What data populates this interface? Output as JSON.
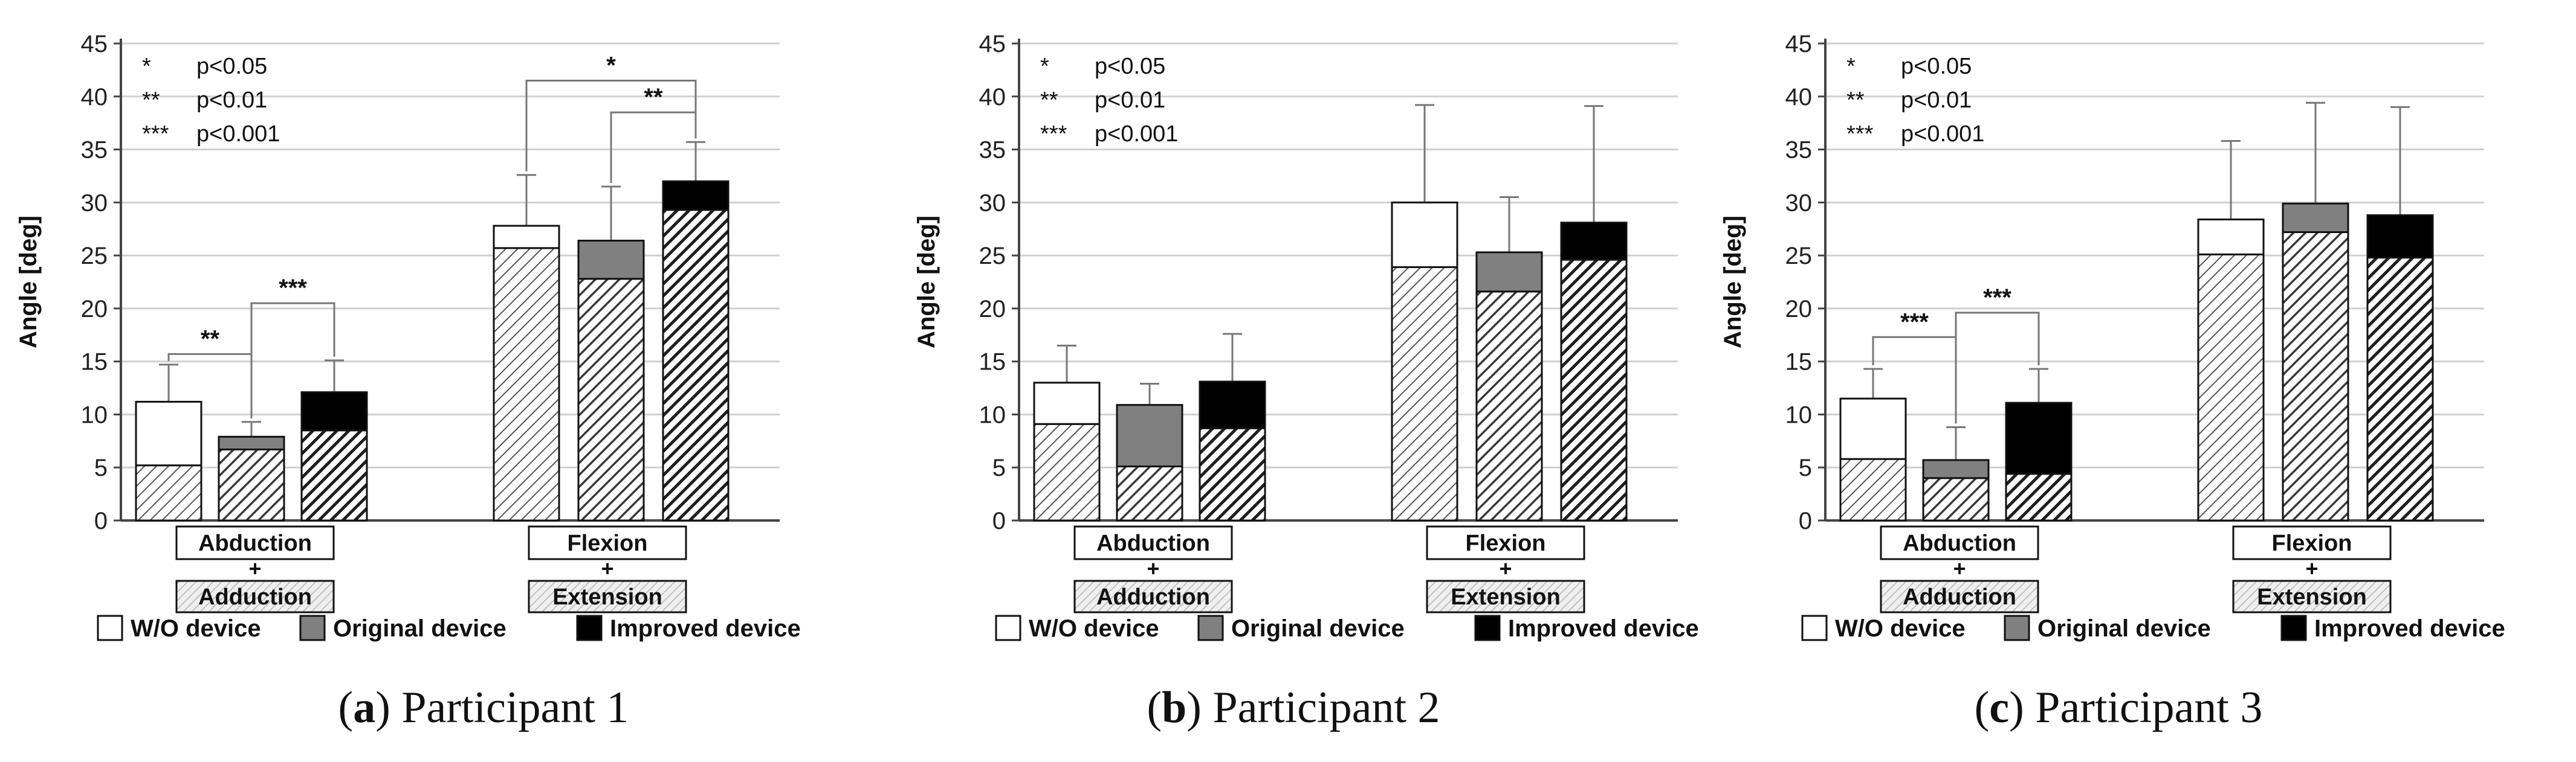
{
  "legend": {
    "items": [
      {
        "label": "W/O device",
        "swatch_color": "#ffffff"
      },
      {
        "label": "Original device",
        "swatch_color": "#808080"
      },
      {
        "label": "Improved device",
        "swatch_color": "#000000"
      }
    ]
  },
  "significance_key": [
    {
      "symbol": "*",
      "text": "p<0.05"
    },
    {
      "symbol": "**",
      "text": "p<0.01"
    },
    {
      "symbol": "***",
      "text": "p<0.001"
    }
  ],
  "group_labels": [
    {
      "top": "Abduction",
      "plus": "+",
      "bottom": "Adduction"
    },
    {
      "top": "Flexion",
      "plus": "+",
      "bottom": "Extension"
    }
  ],
  "colors": {
    "wo_device": "#ffffff",
    "original_device": "#808080",
    "improved_device": "#000000",
    "axis": "#444444",
    "grid": "#d0d0d0"
  },
  "chart_data": [
    {
      "type": "bar",
      "panel_letter": "a",
      "panel_title": "Participant 1",
      "ylabel": "Angle [deg]",
      "ylim": [
        0,
        45
      ],
      "yticks": [
        0,
        5,
        10,
        15,
        20,
        25,
        30,
        35,
        40,
        45
      ],
      "grid": true,
      "categories": [
        "Abduction + Adduction",
        "Flexion + Extension"
      ],
      "series": [
        {
          "name": "W/O device",
          "total": [
            11.2,
            27.8
          ],
          "lower_segment": [
            5.2,
            25.7
          ],
          "error": [
            14.7,
            32.6
          ]
        },
        {
          "name": "Original device",
          "total": [
            7.9,
            26.4
          ],
          "lower_segment": [
            6.7,
            22.8
          ],
          "error": [
            9.3,
            31.5
          ]
        },
        {
          "name": "Improved device",
          "total": [
            12.1,
            32.0
          ],
          "lower_segment": [
            8.5,
            29.3
          ],
          "error": [
            15.1,
            35.7
          ]
        }
      ],
      "significance": [
        {
          "category": 0,
          "from": 0,
          "to": 1,
          "label": "**",
          "y": 15.7
        },
        {
          "category": 0,
          "from": 1,
          "to": 2,
          "label": "***",
          "y": 20.5
        },
        {
          "category": 1,
          "from": 0,
          "to": 2,
          "label": "*",
          "y": 41.5
        },
        {
          "category": 1,
          "from": 1,
          "to": 2,
          "label": "**",
          "y": 38.5
        }
      ]
    },
    {
      "type": "bar",
      "panel_letter": "b",
      "panel_title": "Participant 2",
      "ylabel": "Angle [deg]",
      "ylim": [
        0,
        45
      ],
      "yticks": [
        0,
        5,
        10,
        15,
        20,
        25,
        30,
        35,
        40,
        45
      ],
      "grid": true,
      "categories": [
        "Abduction + Adduction",
        "Flexion + Extension"
      ],
      "series": [
        {
          "name": "W/O device",
          "total": [
            13.0,
            30.0
          ],
          "lower_segment": [
            9.1,
            23.9
          ],
          "error": [
            16.5,
            39.2
          ]
        },
        {
          "name": "Original device",
          "total": [
            10.9,
            25.3
          ],
          "lower_segment": [
            5.1,
            21.6
          ],
          "error": [
            12.9,
            30.5
          ]
        },
        {
          "name": "Improved device",
          "total": [
            13.1,
            28.1
          ],
          "lower_segment": [
            8.7,
            24.6
          ],
          "error": [
            17.6,
            39.1
          ]
        }
      ],
      "significance": []
    },
    {
      "type": "bar",
      "panel_letter": "c",
      "panel_title": "Participant 3",
      "ylabel": "Angle [deg]",
      "ylim": [
        0,
        45
      ],
      "yticks": [
        0,
        5,
        10,
        15,
        20,
        25,
        30,
        35,
        40,
        45
      ],
      "grid": true,
      "categories": [
        "Abduction + Adduction",
        "Flexion + Extension"
      ],
      "series": [
        {
          "name": "W/O device",
          "total": [
            11.5,
            28.4
          ],
          "lower_segment": [
            5.8,
            25.1
          ],
          "error": [
            14.3,
            35.8
          ]
        },
        {
          "name": "Original device",
          "total": [
            5.7,
            29.9
          ],
          "lower_segment": [
            4.0,
            27.2
          ],
          "error": [
            8.8,
            39.4
          ]
        },
        {
          "name": "Improved device",
          "total": [
            11.1,
            28.8
          ],
          "lower_segment": [
            4.4,
            24.8
          ],
          "error": [
            14.3,
            39.0
          ]
        }
      ],
      "significance": [
        {
          "category": 0,
          "from": 0,
          "to": 1,
          "label": "***",
          "y": 17.3
        },
        {
          "category": 0,
          "from": 1,
          "to": 2,
          "label": "***",
          "y": 19.6
        }
      ]
    }
  ]
}
